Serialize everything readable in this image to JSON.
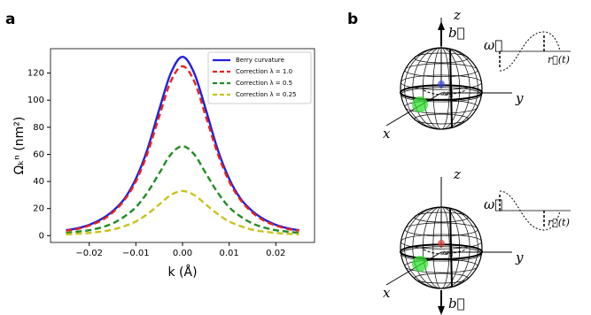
{
  "chart_data": {
    "type": "line",
    "panel_label": "a",
    "xlabel": "k (Å)",
    "ylabel": "Ωₖⁿ (nm²)",
    "x": [
      -0.025,
      -0.0225,
      -0.02,
      -0.0175,
      -0.015,
      -0.0125,
      -0.01,
      -0.0075,
      -0.005,
      -0.0025,
      0,
      0.0025,
      0.005,
      0.0075,
      0.01,
      0.0125,
      0.015,
      0.0175,
      0.02,
      0.0225,
      0.025
    ],
    "series": [
      {
        "name": "Berry curvature",
        "color": "#1f1fdf",
        "linestyle": "solid",
        "values": [
          4,
          5.5,
          8,
          12,
          18,
          27,
          42,
          64,
          93,
          120,
          132,
          120,
          93,
          64,
          42,
          27,
          18,
          12,
          8,
          5.5,
          4
        ]
      },
      {
        "name": "Correction λ = 1.0",
        "color": "#e8221c",
        "linestyle": "dashed",
        "values": [
          3.7,
          5,
          7.5,
          11,
          17,
          26,
          40,
          61,
          88,
          114,
          125,
          114,
          88,
          61,
          40,
          26,
          17,
          11,
          7.5,
          5,
          3.7
        ]
      },
      {
        "name": "Correction λ = 0.5",
        "color": "#238b23",
        "linestyle": "dashed",
        "values": [
          2,
          3,
          4,
          6,
          9,
          14,
          21,
          32,
          46,
          60,
          66,
          60,
          46,
          32,
          21,
          14,
          9,
          6,
          4,
          3,
          2
        ]
      },
      {
        "name": "Correction λ = 0.25",
        "color": "#c8c21c",
        "linestyle": "dashed",
        "values": [
          1,
          1.4,
          2,
          3,
          4.4,
          7,
          10.5,
          16,
          23,
          30,
          33,
          30,
          23,
          16,
          10.5,
          7,
          4.4,
          3,
          2,
          1.4,
          1
        ]
      }
    ],
    "xlim": [
      -0.0283,
      0.0283
    ],
    "ylim": [
      -5,
      138
    ],
    "xticks": [
      {
        "value": -0.02,
        "label": "−0.02"
      },
      {
        "value": -0.01,
        "label": "−0.01"
      },
      {
        "value": 0,
        "label": "0.00"
      },
      {
        "value": 0.01,
        "label": "0.01"
      },
      {
        "value": 0.02,
        "label": "0.02"
      }
    ],
    "yticks": [
      0,
      20,
      40,
      60,
      80,
      100,
      120
    ],
    "legend": "upper right",
    "grid": false
  },
  "panel_b": {
    "label": "b",
    "top": {
      "z": "z",
      "y": "y",
      "x": "x",
      "b": "b⃗",
      "omega": "ω⃗",
      "r": "r⃗(t)",
      "small_omega": "ω⃗"
    },
    "bottom": {
      "z": "z",
      "y": "y",
      "x": "x",
      "b": "b⃗",
      "omega": "ω⃗",
      "r": "r⃗(t)",
      "small_omega": "ω⃗"
    }
  }
}
